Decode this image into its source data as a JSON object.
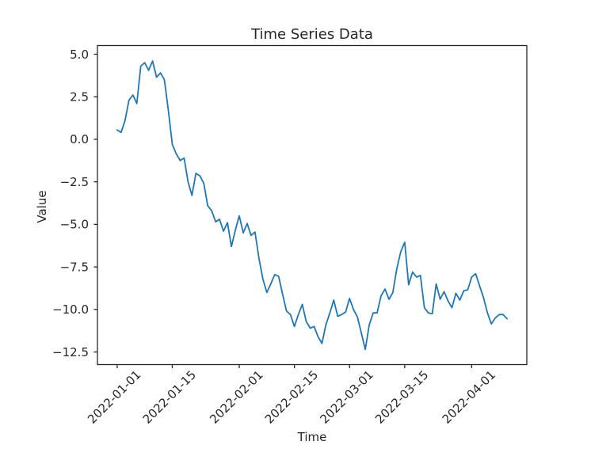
{
  "chart_data": {
    "type": "line",
    "title": "Time Series Data",
    "xlabel": "Time",
    "ylabel": "Value",
    "legend": null,
    "grid": false,
    "series_color": "#1f77b4",
    "frame_color": "#262626",
    "text_color": "#262626",
    "background_color": "#ffffff",
    "x_start_date": "2022-01-01",
    "x_end_date": "2022-04-10",
    "x_interval": "daily",
    "x_tick_labels": [
      "2022-01-01",
      "2022-01-15",
      "2022-02-01",
      "2022-02-15",
      "2022-03-01",
      "2022-03-15",
      "2022-04-01"
    ],
    "x_tick_days": [
      0,
      14,
      31,
      45,
      59,
      73,
      90
    ],
    "y_ticks": [
      5.0,
      2.5,
      0.0,
      -2.5,
      -5.0,
      -7.5,
      -10.0,
      -12.5
    ],
    "y_tick_labels": [
      "5.0",
      "2.5",
      "0.0",
      "−2.5",
      "−5.0",
      "−7.5",
      "−10.0",
      "−12.5"
    ],
    "xlim_days": [
      -5,
      104
    ],
    "ylim": [
      -13.24,
      5.51
    ],
    "values": [
      0.55,
      0.4,
      1.1,
      2.3,
      2.6,
      2.1,
      4.3,
      4.5,
      4.05,
      4.6,
      3.65,
      3.9,
      3.5,
      1.7,
      -0.3,
      -0.85,
      -1.25,
      -1.1,
      -2.5,
      -3.3,
      -2.0,
      -2.15,
      -2.6,
      -3.9,
      -4.2,
      -4.85,
      -4.7,
      -5.4,
      -4.9,
      -6.3,
      -5.35,
      -4.5,
      -5.5,
      -4.95,
      -5.65,
      -5.45,
      -7.0,
      -8.2,
      -9.0,
      -8.5,
      -7.95,
      -8.05,
      -9.1,
      -10.1,
      -10.3,
      -11.0,
      -10.3,
      -9.7,
      -10.7,
      -11.1,
      -11.0,
      -11.6,
      -12.0,
      -10.9,
      -10.2,
      -9.45,
      -10.4,
      -10.3,
      -10.15,
      -9.35,
      -10.0,
      -10.45,
      -11.4,
      -12.35,
      -10.9,
      -10.2,
      -10.2,
      -9.2,
      -8.8,
      -9.4,
      -9.0,
      -7.6,
      -6.6,
      -6.05,
      -8.55,
      -7.8,
      -8.1,
      -8.0,
      -9.9,
      -10.2,
      -10.25,
      -8.5,
      -9.4,
      -8.95,
      -9.5,
      -9.9,
      -9.05,
      -9.45,
      -8.9,
      -8.85,
      -8.1,
      -7.9,
      -8.6,
      -9.3,
      -10.2,
      -10.85,
      -10.5,
      -10.3,
      -10.3,
      -10.55
    ]
  }
}
